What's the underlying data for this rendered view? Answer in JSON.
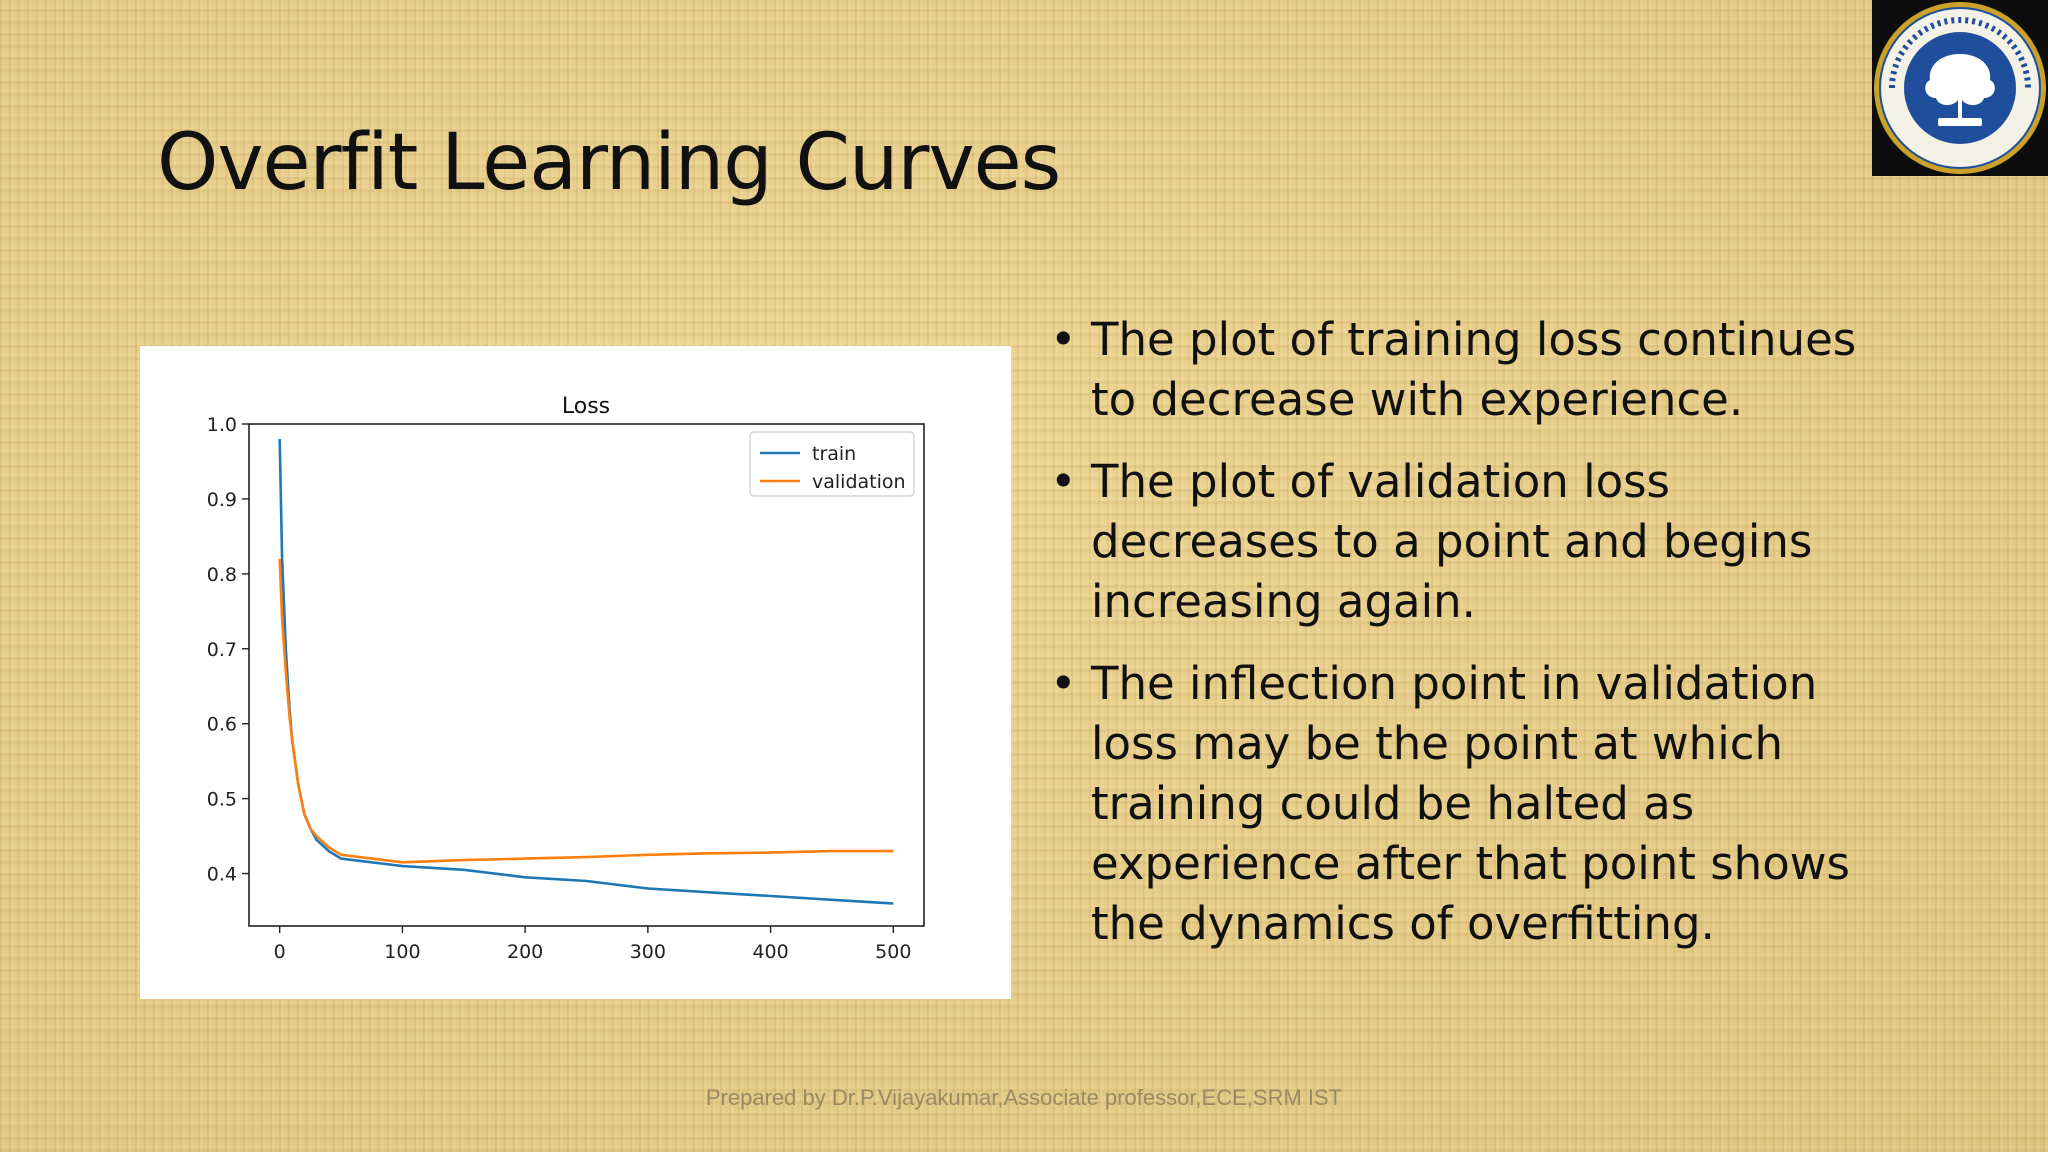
{
  "slide": {
    "title": "Overfit Learning Curves",
    "bullets": [
      "The plot of training loss continues to decrease with experience.",
      "The plot of validation loss decreases to a point and begins increasing again.",
      "The inflection point in validation loss may be the point at which training could be halted as experience after that point shows the dynamics of overfitting."
    ],
    "footer": "Prepared by Dr.P.Vijayakumar,Associate professor,ECE,SRM IST",
    "logo": {
      "icon": "tree-seal-icon",
      "colors": {
        "ring": "#c9a227",
        "field": "#1f4e9c"
      }
    }
  },
  "chart_data": {
    "type": "line",
    "title": "Loss",
    "xlim": [
      0,
      500
    ],
    "ylim": [
      0.33,
      1.0
    ],
    "xticks": [
      "0",
      "100",
      "200",
      "300",
      "400",
      "500"
    ],
    "yticks": [
      "0.4",
      "0.5",
      "0.6",
      "0.7",
      "0.8",
      "0.9",
      "1.0"
    ],
    "legend_position": "top-right",
    "series": [
      {
        "name": "train",
        "color": "#1f77b4",
        "x": [
          0,
          2,
          5,
          8,
          10,
          15,
          20,
          25,
          30,
          40,
          50,
          75,
          100,
          150,
          200,
          250,
          300,
          350,
          400,
          450,
          500
        ],
        "y": [
          0.98,
          0.82,
          0.7,
          0.62,
          0.58,
          0.52,
          0.48,
          0.46,
          0.445,
          0.43,
          0.42,
          0.415,
          0.41,
          0.405,
          0.395,
          0.39,
          0.38,
          0.375,
          0.37,
          0.365,
          0.36
        ]
      },
      {
        "name": "validation",
        "color": "#ff7f0e",
        "x": [
          0,
          2,
          5,
          8,
          10,
          15,
          20,
          25,
          30,
          40,
          50,
          75,
          100,
          150,
          200,
          250,
          300,
          350,
          400,
          450,
          500
        ],
        "y": [
          0.82,
          0.74,
          0.67,
          0.61,
          0.58,
          0.52,
          0.48,
          0.46,
          0.45,
          0.435,
          0.425,
          0.42,
          0.415,
          0.418,
          0.42,
          0.422,
          0.425,
          0.427,
          0.428,
          0.43,
          0.43
        ]
      }
    ]
  }
}
